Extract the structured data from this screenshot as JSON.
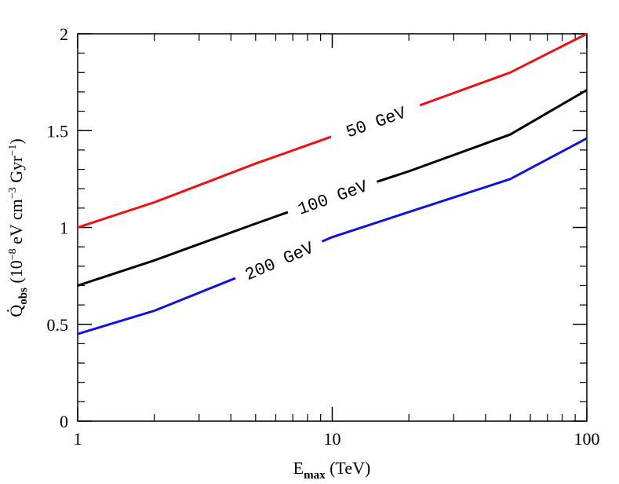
{
  "chart_data": {
    "type": "line",
    "xlabel": [
      "E",
      "max",
      " (TeV)"
    ],
    "ylabel": [
      "Q̇",
      "obs",
      " (10",
      "−8",
      " eV cm",
      "−3",
      " Gyr",
      "−1",
      ")"
    ],
    "xscale": "log",
    "x": [
      1,
      2,
      5,
      10,
      20,
      50,
      100
    ],
    "series": [
      {
        "name": "50 GeV",
        "color": "#ee1111",
        "values": [
          1.0,
          1.13,
          1.33,
          1.47,
          1.61,
          1.8,
          2.0
        ]
      },
      {
        "name": "100 GeV",
        "color": "#000000",
        "values": [
          0.7,
          0.83,
          1.02,
          1.16,
          1.29,
          1.48,
          1.71
        ]
      },
      {
        "name": "200 GeV",
        "color": "#1111dd",
        "values": [
          0.45,
          0.57,
          0.78,
          0.95,
          1.08,
          1.25,
          1.46
        ]
      }
    ],
    "xlim": [
      1,
      100
    ],
    "xticks": [
      1,
      10,
      100
    ],
    "ylim": [
      0,
      2
    ],
    "yticks": [
      0,
      0.5,
      1,
      1.5,
      2
    ]
  }
}
